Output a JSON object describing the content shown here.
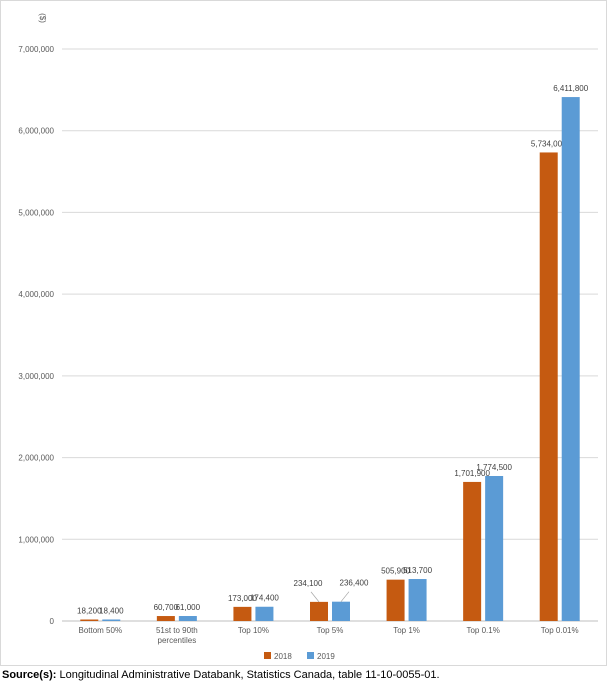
{
  "chart_data": {
    "type": "bar",
    "title": "",
    "ylabel": "($)",
    "xlabel": "",
    "ylim": [
      0,
      7000000
    ],
    "yticks": [
      0,
      1000000,
      2000000,
      3000000,
      4000000,
      5000000,
      6000000,
      7000000
    ],
    "ytick_labels": [
      "0",
      "1,000,000",
      "2,000,000",
      "3,000,000",
      "4,000,000",
      "5,000,000",
      "6,000,000",
      "7,000,000"
    ],
    "grid": true,
    "legend_position": "bottom",
    "categories": [
      [
        "Bottom 50%"
      ],
      [
        "51st to 90th",
        "percentiles"
      ],
      [
        "Top 10%"
      ],
      [
        "Top 5%"
      ],
      [
        "Top 1%"
      ],
      [
        "Top 0.1%"
      ],
      [
        "Top 0.01%"
      ]
    ],
    "series": [
      {
        "name": "2018",
        "color": "#C55A11",
        "values": [
          18200,
          60700,
          173000,
          234100,
          505900,
          1701900,
          5734000
        ],
        "labels": [
          "18,200",
          "60,700",
          "173,000",
          "234,100",
          "505,900",
          "1,701,900",
          "5,734,000"
        ]
      },
      {
        "name": "2019",
        "color": "#5B9BD5",
        "values": [
          18400,
          61000,
          174400,
          236400,
          513700,
          1774500,
          6411800
        ],
        "labels": [
          "18,400",
          "61,000",
          "174,400",
          "236,400",
          "513,700",
          "1,774,500",
          "6,411,800"
        ]
      }
    ]
  },
  "source": {
    "label": "Source(s):",
    "text": " Longitudinal Administrative Databank, Statistics Canada, table 11-10-0055-01."
  }
}
